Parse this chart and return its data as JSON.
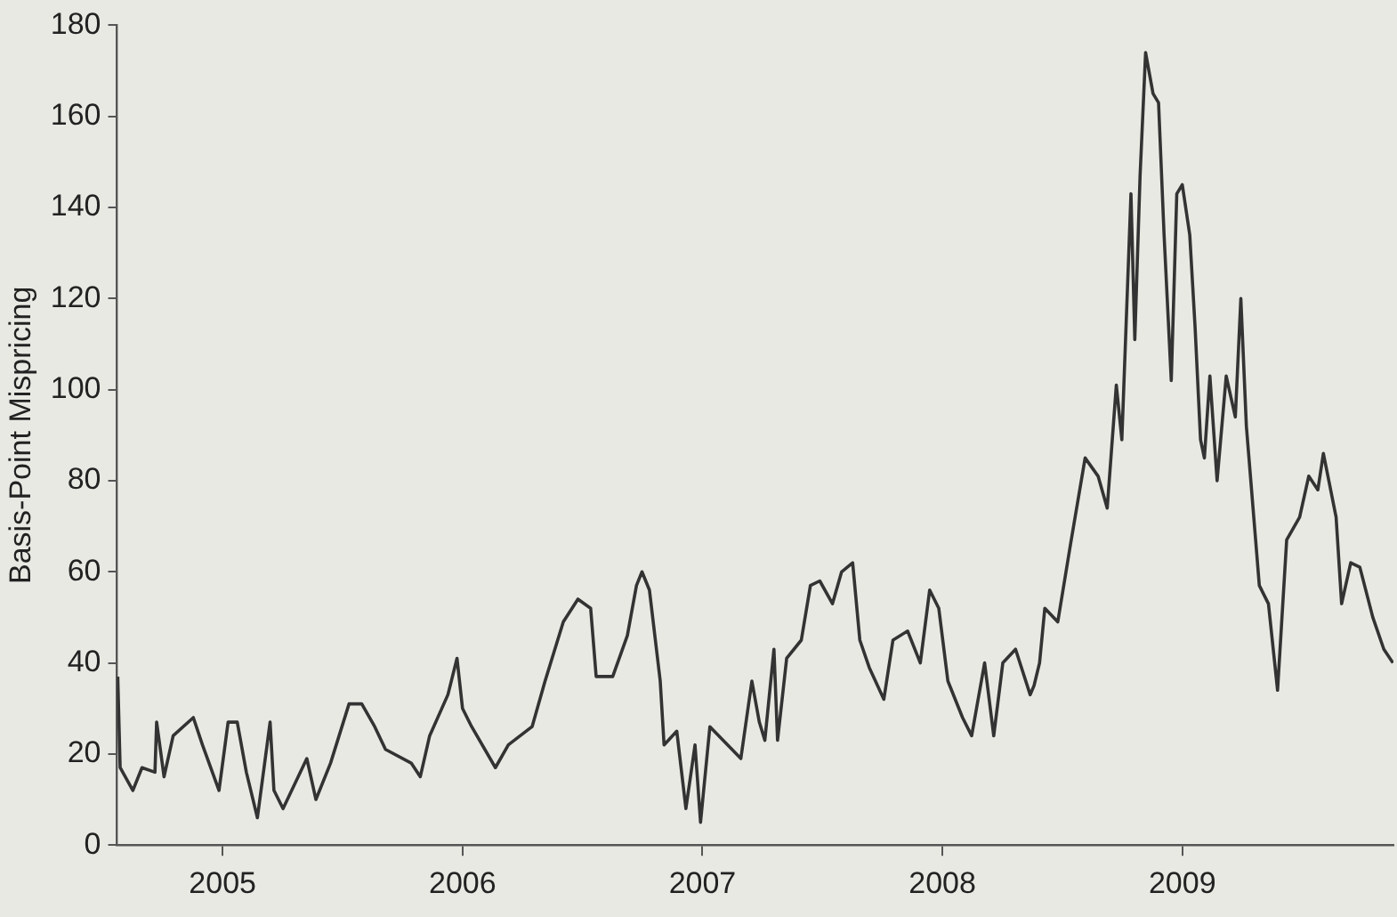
{
  "chart_data": {
    "type": "line",
    "ylabel": "Basis-Point Mispricing",
    "color": "#333333",
    "x": [
      2004.563,
      2004.573,
      2004.626,
      2004.664,
      2004.718,
      2004.725,
      2004.756,
      2004.794,
      2004.878,
      2004.916,
      2004.985,
      2005.023,
      2005.061,
      2005.099,
      2005.145,
      2005.198,
      2005.214,
      2005.252,
      2005.351,
      2005.389,
      2005.45,
      2005.527,
      2005.58,
      2005.634,
      2005.679,
      2005.786,
      2005.824,
      2005.863,
      2005.939,
      2005.977,
      2006.0,
      2006.038,
      2006.137,
      2006.191,
      2006.29,
      2006.344,
      2006.42,
      2006.481,
      2006.534,
      2006.557,
      2006.626,
      2006.687,
      2006.725,
      2006.748,
      2006.779,
      2006.824,
      2006.84,
      2006.893,
      2006.931,
      2006.969,
      2006.992,
      2007.031,
      2007.16,
      2007.206,
      2007.237,
      2007.26,
      2007.298,
      2007.313,
      2007.351,
      2007.412,
      2007.45,
      2007.489,
      2007.542,
      2007.58,
      2007.626,
      2007.656,
      2007.695,
      2007.756,
      2007.794,
      2007.855,
      2007.908,
      2007.947,
      2007.985,
      2008.023,
      2008.084,
      2008.122,
      2008.176,
      2008.214,
      2008.252,
      2008.305,
      2008.366,
      2008.382,
      2008.405,
      2008.427,
      2008.481,
      2008.534,
      2008.595,
      2008.649,
      2008.687,
      2008.725,
      2008.748,
      2008.786,
      2008.802,
      2008.824,
      2008.847,
      2008.878,
      2008.901,
      2008.924,
      2008.954,
      2008.977,
      2009.0,
      2009.031,
      2009.053,
      2009.076,
      2009.092,
      2009.115,
      2009.145,
      2009.183,
      2009.221,
      2009.244,
      2009.267,
      2009.321,
      2009.359,
      2009.397,
      2009.435,
      2009.489,
      2009.527,
      2009.565,
      2009.588,
      2009.641,
      2009.664,
      2009.702,
      2009.74,
      2009.794,
      2009.84,
      2009.878
    ],
    "values": [
      37,
      17,
      12,
      17,
      16,
      27,
      15,
      24,
      28,
      22,
      12,
      27,
      27,
      16,
      6,
      27,
      12,
      8,
      19,
      10,
      18,
      31,
      31,
      26,
      21,
      18,
      15,
      24,
      33,
      41,
      30,
      26,
      17,
      22,
      26,
      36,
      49,
      54,
      52,
      37,
      37,
      46,
      57,
      60,
      56,
      36,
      22,
      25,
      8,
      22,
      5,
      26,
      19,
      36,
      27,
      23,
      43,
      23,
      41,
      45,
      57,
      58,
      53,
      60,
      62,
      45,
      39,
      32,
      45,
      47,
      40,
      56,
      52,
      36,
      28,
      24,
      40,
      24,
      40,
      43,
      33,
      35,
      40,
      52,
      49,
      66,
      85,
      81,
      74,
      101,
      89,
      143,
      111,
      147,
      174,
      165,
      163,
      134,
      102,
      143,
      145,
      134,
      114,
      89,
      85,
      103,
      80,
      103,
      94,
      120,
      92,
      57,
      53,
      34,
      67,
      72,
      81,
      78,
      86,
      72,
      53,
      62,
      61,
      50,
      43,
      40
    ],
    "xlim": [
      2004.56,
      2009.88
    ],
    "xticks": [
      2005,
      2006,
      2007,
      2008,
      2009
    ],
    "ylim": [
      0,
      180
    ],
    "yticks": [
      0,
      20,
      40,
      60,
      80,
      100,
      120,
      140,
      160,
      180
    ],
    "grid": false,
    "legend": false,
    "marker": "none",
    "line_style": "solid"
  }
}
